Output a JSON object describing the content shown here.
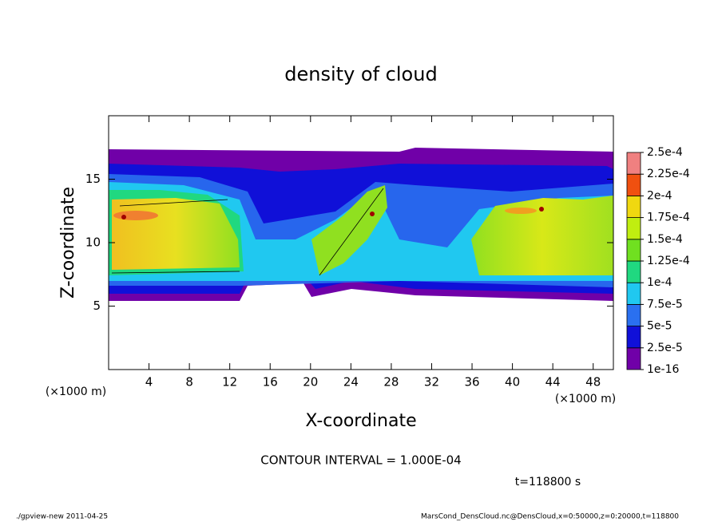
{
  "chart_data": {
    "type": "contour",
    "title": "density of cloud",
    "xlabel": "X-coordinate",
    "ylabel": "Z-coordinate",
    "x_unit": "(×1000 m)",
    "xlim": [
      0,
      50
    ],
    "xticks": [
      4,
      8,
      12,
      16,
      20,
      24,
      28,
      32,
      36,
      40,
      44,
      48
    ],
    "ylim": [
      0,
      20
    ],
    "yticks": [
      5,
      10,
      15
    ],
    "colorbar": {
      "levels": [
        {
          "value": 1e-16,
          "label": "1e-16"
        },
        {
          "value": 2.5e-05,
          "label": "2.5e-5"
        },
        {
          "value": 5e-05,
          "label": "5e-5"
        },
        {
          "value": 7.5e-05,
          "label": "7.5e-5"
        },
        {
          "value": 0.0001,
          "label": "1e-4"
        },
        {
          "value": 0.000125,
          "label": "1.25e-4"
        },
        {
          "value": 0.00015,
          "label": "1.5e-4"
        },
        {
          "value": 0.000175,
          "label": "1.75e-4"
        },
        {
          "value": 0.0002,
          "label": "2e-4"
        },
        {
          "value": 0.000225,
          "label": "2.25e-4"
        },
        {
          "value": 0.00025,
          "label": "2.5e-4"
        }
      ],
      "colors": [
        "#7000a8",
        "#1010d8",
        "#2a70f0",
        "#20c8f0",
        "#20d880",
        "#70e020",
        "#c0ee10",
        "#f0d810",
        "#f05010",
        "#f08080"
      ]
    },
    "contour_note": "CONTOUR INTERVAL = 1.000E-04",
    "time_note": "t=118800 s",
    "footer_left": "./gpview-new  2011-04-25",
    "footer_right": "MarsCond_DensCloud.nc@DensCloud,x=0:50000,z=0:20000,t=118800"
  }
}
